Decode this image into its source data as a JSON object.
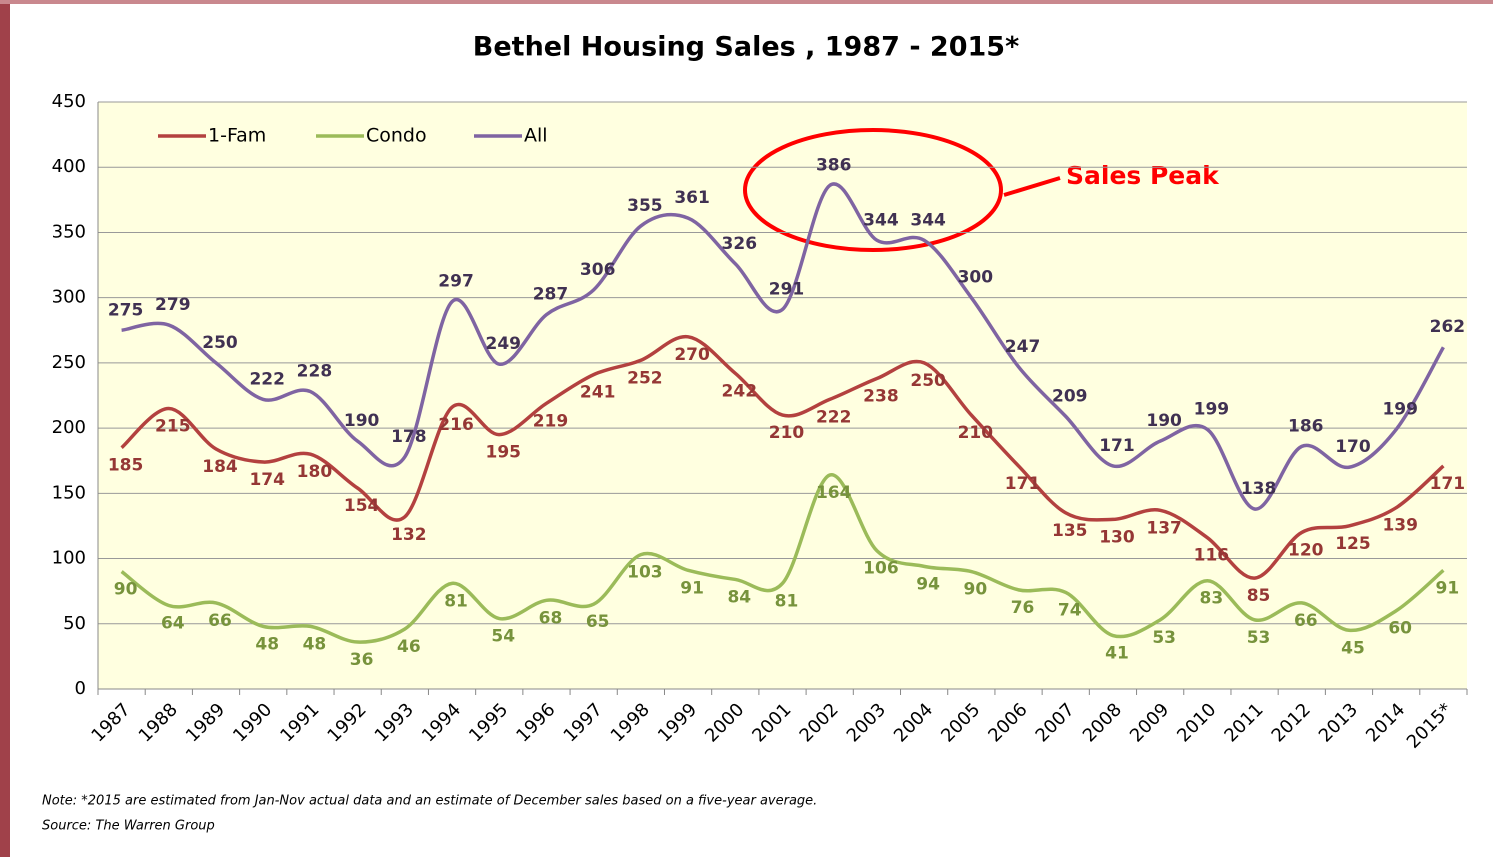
{
  "chart_data": {
    "type": "line",
    "title": "Bethel Housing Sales , 1987 - 2015*",
    "categories": [
      "1987",
      "1988",
      "1989",
      "1990",
      "1991",
      "1992",
      "1993",
      "1994",
      "1995",
      "1996",
      "1997",
      "1998",
      "1999",
      "2000",
      "2001",
      "2002",
      "2003",
      "2004",
      "2005",
      "2006",
      "2007",
      "2008",
      "2009",
      "2010",
      "2011",
      "2012",
      "2013",
      "2014",
      "2015*"
    ],
    "series": [
      {
        "name": "1-Fam",
        "color": "#b3413f",
        "label_color": "#953735",
        "values": [
          185,
          215,
          184,
          174,
          180,
          154,
          132,
          216,
          195,
          219,
          241,
          252,
          270,
          242,
          210,
          222,
          238,
          250,
          210,
          171,
          135,
          130,
          137,
          116,
          85,
          120,
          125,
          139,
          171
        ]
      },
      {
        "name": "Condo",
        "color": "#9bbb59",
        "label_color": "#77933c",
        "values": [
          90,
          64,
          66,
          48,
          48,
          36,
          46,
          81,
          54,
          68,
          65,
          103,
          91,
          84,
          81,
          164,
          106,
          94,
          90,
          76,
          74,
          41,
          53,
          83,
          53,
          66,
          45,
          60,
          91
        ]
      },
      {
        "name": "All",
        "color": "#7f64a2",
        "label_color": "#403152",
        "values": [
          275,
          279,
          250,
          222,
          228,
          190,
          178,
          297,
          249,
          287,
          306,
          355,
          361,
          326,
          291,
          386,
          344,
          344,
          300,
          247,
          209,
          171,
          190,
          199,
          138,
          186,
          170,
          199,
          262
        ]
      }
    ],
    "ylim": [
      0,
      450
    ],
    "yticks": [
      0,
      50,
      100,
      150,
      200,
      250,
      300,
      350,
      400,
      450
    ],
    "grid": true,
    "legend": "top-left",
    "annotation": "Sales Peak",
    "note": "Note: *2015 are estimated from Jan-Nov actual data and an estimate of December sales based on a five-year average.",
    "source": "Source: The Warren Group"
  }
}
